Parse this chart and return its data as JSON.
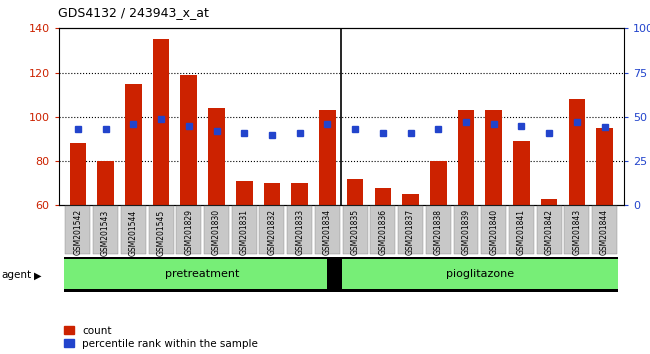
{
  "title": "GDS4132 / 243943_x_at",
  "samples": [
    "GSM201542",
    "GSM201543",
    "GSM201544",
    "GSM201545",
    "GSM201829",
    "GSM201830",
    "GSM201831",
    "GSM201832",
    "GSM201833",
    "GSM201834",
    "GSM201835",
    "GSM201836",
    "GSM201837",
    "GSM201838",
    "GSM201839",
    "GSM201840",
    "GSM201841",
    "GSM201842",
    "GSM201843",
    "GSM201844"
  ],
  "counts": [
    88,
    80,
    115,
    135,
    119,
    104,
    71,
    70,
    70,
    103,
    72,
    68,
    65,
    80,
    103,
    103,
    89,
    63,
    108,
    95
  ],
  "percentile": [
    43,
    43,
    46,
    49,
    45,
    42,
    41,
    40,
    41,
    46,
    43,
    41,
    41,
    43,
    47,
    46,
    45,
    41,
    47,
    44
  ],
  "ylim_left": [
    60,
    140
  ],
  "ylim_right": [
    0,
    100
  ],
  "yticks_left": [
    60,
    80,
    100,
    120,
    140
  ],
  "yticks_right": [
    0,
    25,
    50,
    75,
    100
  ],
  "bar_color": "#cc2200",
  "dot_color": "#2244cc",
  "pretreatment_count": 10,
  "pioglitazone_count": 10,
  "pretreatment_label": "pretreatment",
  "pioglitazone_label": "pioglitazone",
  "agent_label": "agent",
  "legend_count_label": "count",
  "legend_pct_label": "percentile rank within the sample",
  "group_bg_color": "#77ee77",
  "xticklabel_bg": "#c8c8c8",
  "bar_width": 0.6
}
